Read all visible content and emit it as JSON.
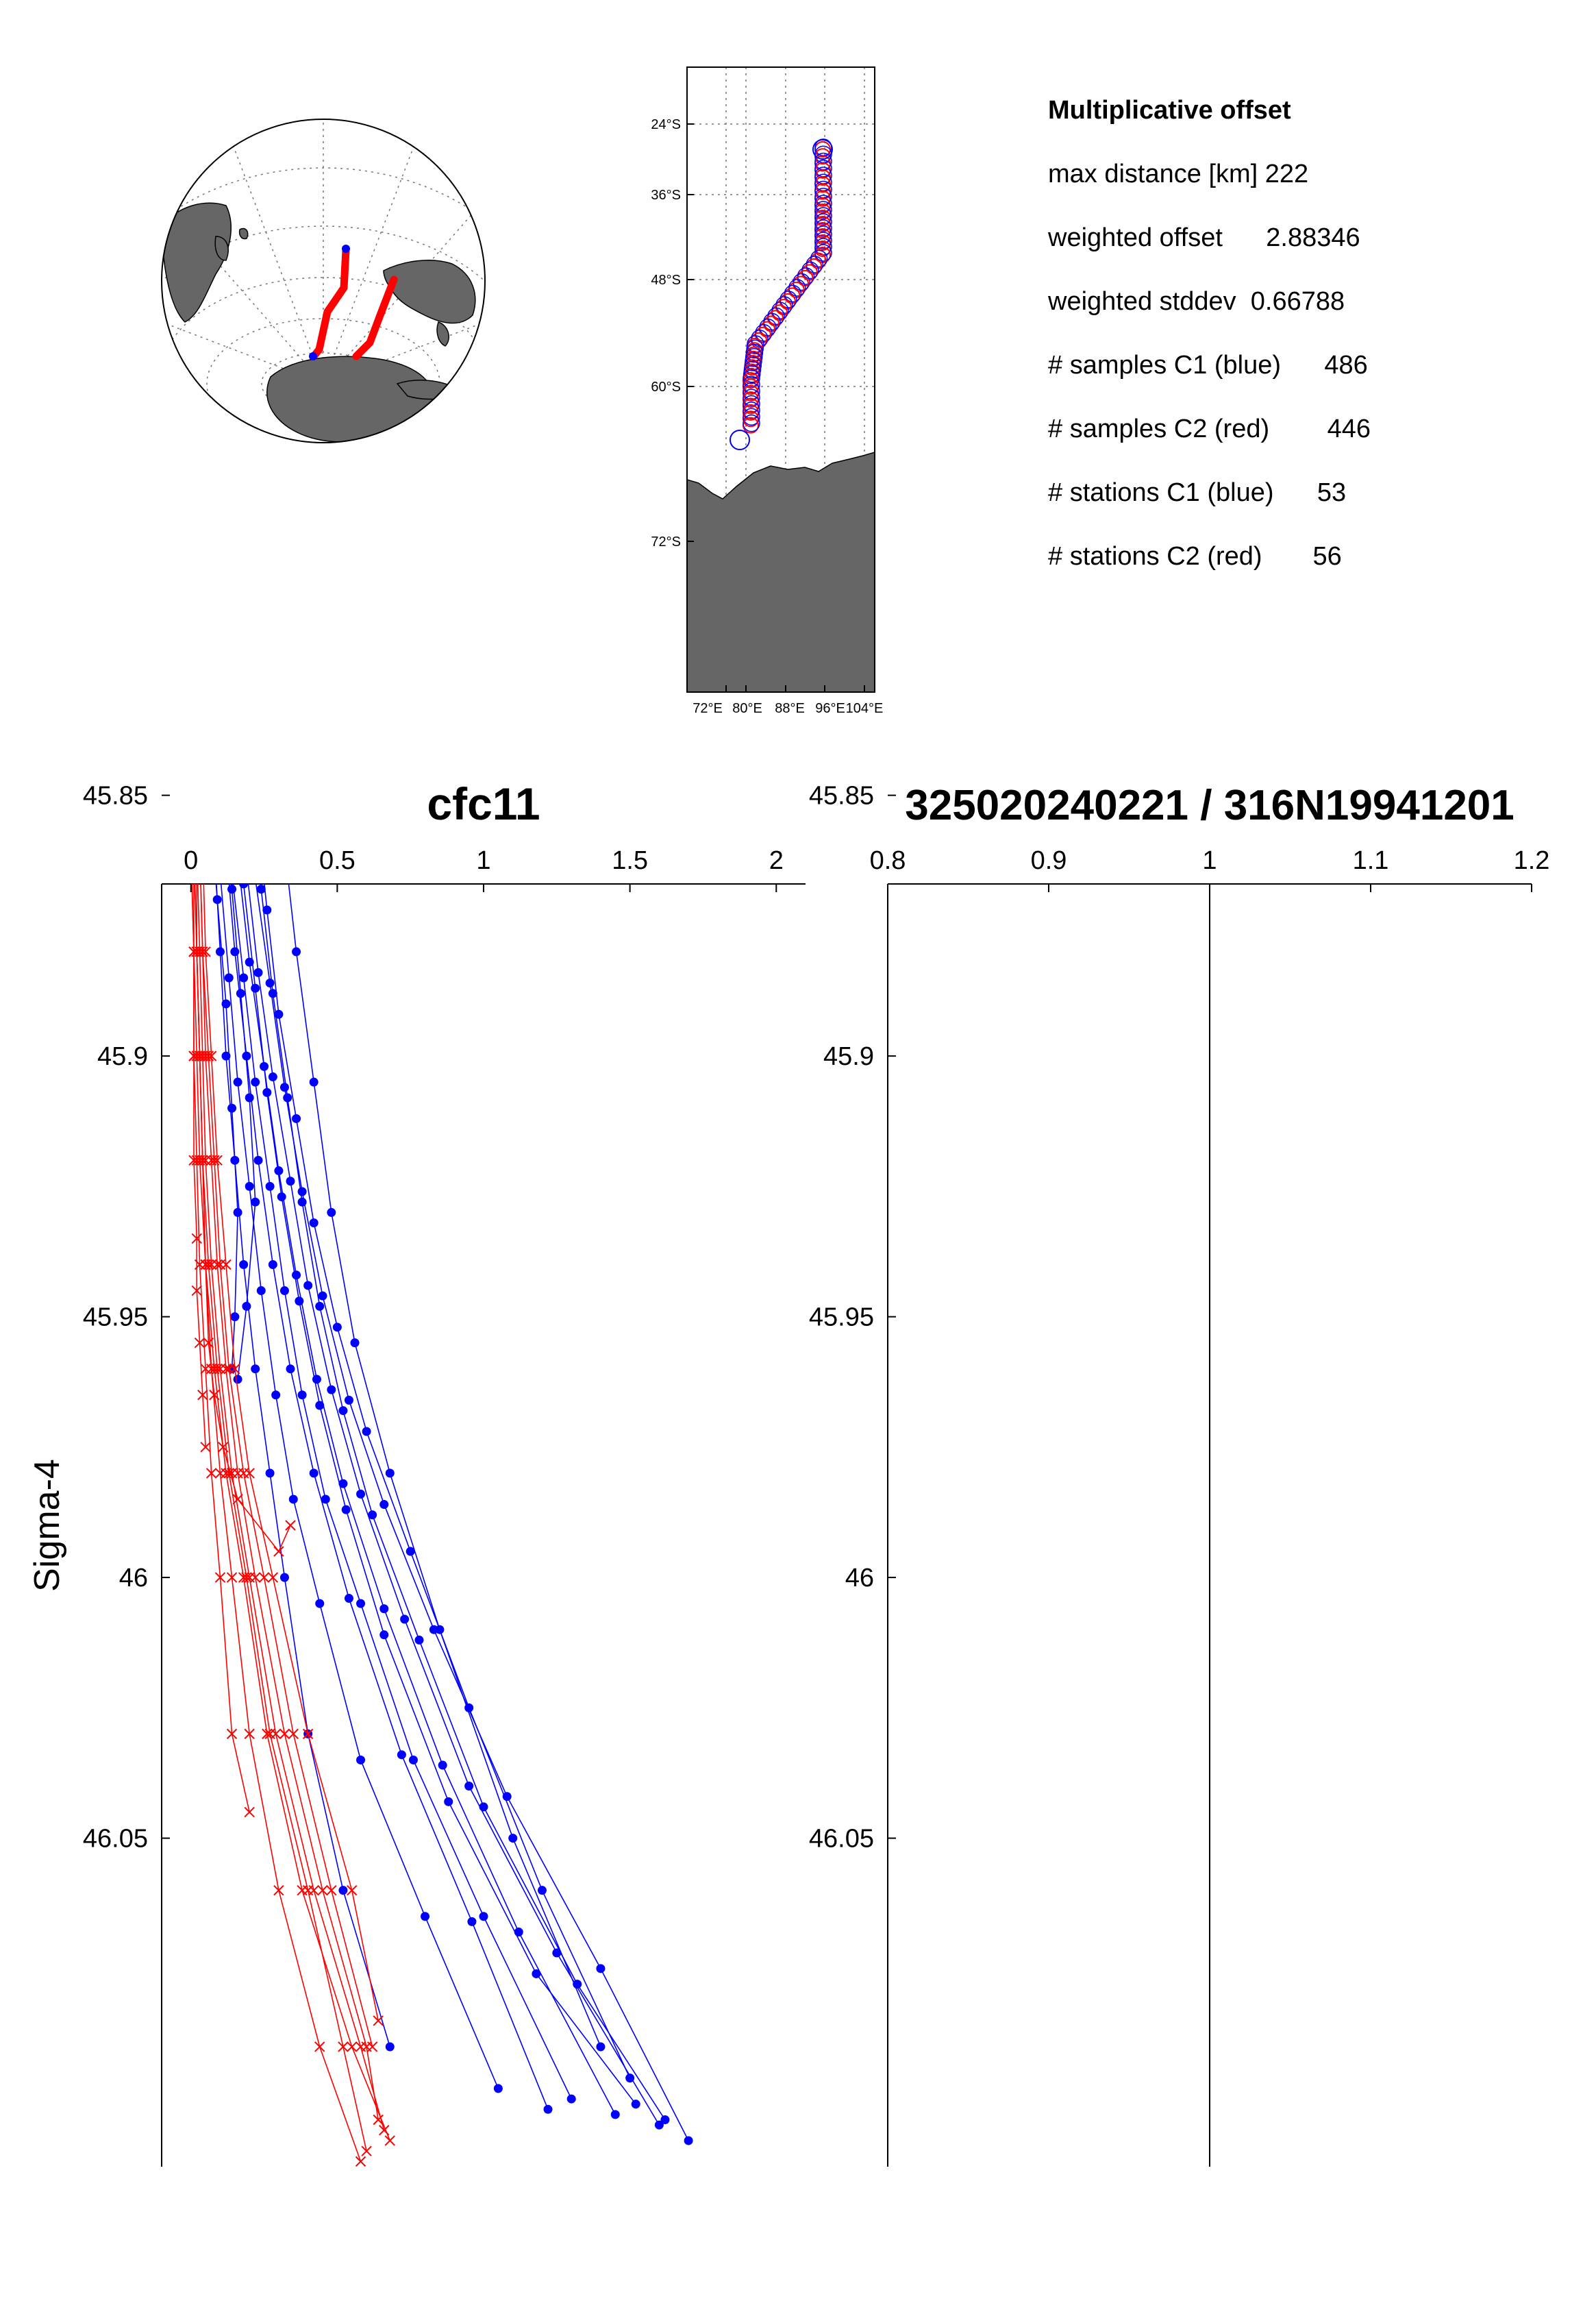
{
  "stats": {
    "heading": "Multiplicative offset",
    "lines": [
      {
        "label": "max distance [km]",
        "value": "222"
      },
      {
        "label": "weighted offset",
        "value": "2.88346"
      },
      {
        "label": "weighted stddev",
        "value": "0.66788"
      },
      {
        "label": "# samples C1 (blue)",
        "value": "486"
      },
      {
        "label": "# samples C2 (red)",
        "value": "446"
      },
      {
        "label": "# stations C1 (blue)",
        "value": "53"
      },
      {
        "label": "# stations C2 (red)",
        "value": "56"
      }
    ]
  },
  "map": {
    "lat_labels": [
      "24°S",
      "36°S",
      "48°S",
      "60°S",
      "72°S"
    ],
    "lon_labels": [
      "72°E",
      "80°E",
      "88°E",
      "96°E",
      "104°E"
    ],
    "colors": {
      "land": "#666666",
      "c1": "#0000ff",
      "c2": "#ff0000"
    }
  },
  "chart_data": [
    {
      "type": "line",
      "title": "cfc11",
      "xlabel": "",
      "ylabel": "Sigma-4",
      "xlim": [
        -0.1,
        2.1
      ],
      "ylim": [
        45.867,
        46.113
      ],
      "y_reversed": true,
      "x_axis_position": "top",
      "x_ticks": [
        "0",
        "0.5",
        "1",
        "1.5",
        "2"
      ],
      "y_ticks": [
        "45.85",
        "45.9",
        "45.95",
        "46",
        "46.05"
      ],
      "series": [
        {
          "color": "#0000ff",
          "marker": "dot",
          "profiles": [
            {
              "x": [
                0.04,
                0.08,
                0.1,
                0.12,
                0.15,
                0.18,
                0.22,
                0.27,
                0.32,
                0.4,
                0.52,
                0.68
              ],
              "y": [
                45.835,
                45.86,
                45.88,
                45.9,
                45.92,
                45.94,
                45.96,
                45.98,
                46.0,
                46.03,
                46.06,
                46.09
              ]
            },
            {
              "x": [
                0.06,
                0.1,
                0.13,
                0.16,
                0.2,
                0.24,
                0.29,
                0.35,
                0.44,
                0.58,
                0.8,
                1.05
              ],
              "y": [
                45.84,
                45.865,
                45.885,
                45.905,
                45.925,
                45.945,
                45.965,
                45.985,
                46.005,
                46.035,
                46.065,
                46.098
              ]
            },
            {
              "x": [
                0.1,
                0.14,
                0.18,
                0.22,
                0.27,
                0.32,
                0.38,
                0.46,
                0.58,
                0.76,
                1.0,
                1.3
              ],
              "y": [
                45.84,
                45.865,
                45.885,
                45.905,
                45.925,
                45.945,
                45.965,
                45.985,
                46.005,
                46.035,
                46.065,
                46.1
              ]
            },
            {
              "x": [
                0.12,
                0.16,
                0.2,
                0.25,
                0.3,
                0.36,
                0.43,
                0.52,
                0.66,
                0.86,
                1.12,
                1.45
              ],
              "y": [
                45.838,
                45.862,
                45.882,
                45.902,
                45.922,
                45.942,
                45.962,
                45.982,
                46.006,
                46.036,
                46.068,
                46.103
              ]
            },
            {
              "x": [
                0.15,
                0.19,
                0.23,
                0.28,
                0.34,
                0.4,
                0.48,
                0.58,
                0.73,
                0.95,
                1.25,
                1.6
              ],
              "y": [
                45.84,
                45.864,
                45.884,
                45.904,
                45.924,
                45.944,
                45.964,
                45.984,
                46.008,
                46.04,
                46.072,
                46.105
              ]
            },
            {
              "x": [
                0.18,
                0.22,
                0.27,
                0.32,
                0.38,
                0.45,
                0.54,
                0.66,
                0.83,
                1.08,
                1.4,
                1.7
              ],
              "y": [
                45.842,
                45.866,
                45.886,
                45.906,
                45.926,
                45.946,
                45.966,
                45.986,
                46.01,
                46.042,
                46.075,
                46.108
              ]
            },
            {
              "x": [
                0.08,
                0.12,
                0.15,
                0.19,
                0.23,
                0.28,
                0.34,
                0.42,
                0.54,
                0.72,
                0.96,
                1.22
              ],
              "y": [
                45.836,
                45.86,
                45.88,
                45.9,
                45.92,
                45.94,
                45.96,
                45.98,
                46.004,
                46.034,
                46.066,
                46.102
              ]
            },
            {
              "x": [
                0.2,
                0.24,
                0.28,
                0.33,
                0.38,
                0.44,
                0.52,
                0.62,
                0.78,
                1.0,
                1.32,
                1.62
              ],
              "y": [
                45.845,
                45.868,
                45.888,
                45.908,
                45.928,
                45.948,
                45.968,
                45.988,
                46.012,
                46.044,
                46.078,
                46.104
              ]
            },
            {
              "x": [
                0.14,
                0.18,
                0.22,
                0.26,
                0.31,
                0.37,
                0.44,
                0.53,
                0.66,
                0.88,
                1.18,
                1.52
              ],
              "y": [
                45.843,
                45.867,
                45.887,
                45.907,
                45.927,
                45.947,
                45.967,
                45.987,
                46.011,
                46.043,
                46.076,
                46.101
              ]
            },
            {
              "x": [
                0.05,
                0.09,
                0.12,
                0.14,
                0.16,
                0.15,
                0.14
              ],
              "y": [
                45.84,
                45.87,
                45.89,
                45.91,
                45.93,
                45.95,
                45.96
              ]
            },
            {
              "x": [
                0.1,
                0.14,
                0.17,
                0.2,
                0.22,
                0.19,
                0.16
              ],
              "y": [
                45.842,
                45.868,
                45.888,
                45.908,
                45.928,
                45.948,
                45.962
              ]
            },
            {
              "x": [
                0.22,
                0.26,
                0.3,
                0.36,
                0.42,
                0.5,
                0.6,
                0.75,
                0.95,
                1.2,
                1.5
              ],
              "y": [
                45.85,
                45.872,
                45.892,
                45.912,
                45.932,
                45.952,
                45.972,
                45.995,
                46.025,
                46.06,
                46.096
              ]
            },
            {
              "x": [
                0.28,
                0.32,
                0.36,
                0.42,
                0.48,
                0.56,
                0.68,
                0.85,
                1.1,
                1.4
              ],
              "y": [
                45.838,
                45.86,
                45.88,
                45.905,
                45.93,
                45.955,
                45.98,
                46.01,
                46.05,
                46.09
              ]
            }
          ]
        },
        {
          "color": "#ff0000",
          "marker": "cross",
          "profiles": [
            {
              "x": [
                0.0,
                0.01,
                0.01,
                0.02,
                0.03,
                0.05,
                0.08,
                0.12,
                0.18,
                0.26,
                0.38,
                0.55,
                0.68
              ],
              "y": [
                45.835,
                45.86,
                45.88,
                45.9,
                45.92,
                45.94,
                45.96,
                45.98,
                46.0,
                46.03,
                46.06,
                46.09,
                46.108
              ]
            },
            {
              "x": [
                0.01,
                0.02,
                0.03,
                0.04,
                0.05,
                0.07,
                0.1,
                0.14,
                0.2,
                0.29,
                0.42,
                0.58,
                0.66
              ],
              "y": [
                45.835,
                45.86,
                45.88,
                45.9,
                45.92,
                45.94,
                45.96,
                45.98,
                46.0,
                46.03,
                46.06,
                46.09,
                46.106
              ]
            },
            {
              "x": [
                0.02,
                0.03,
                0.04,
                0.05,
                0.07,
                0.09,
                0.12,
                0.16,
                0.22,
                0.32,
                0.45,
                0.6,
                0.64
              ],
              "y": [
                45.835,
                45.86,
                45.88,
                45.9,
                45.92,
                45.94,
                45.96,
                45.98,
                46.0,
                46.03,
                46.06,
                46.09,
                46.104
              ]
            },
            {
              "x": [
                0.0,
                0.01,
                0.02,
                0.03,
                0.04,
                0.06,
                0.09,
                0.13,
                0.19,
                0.27,
                0.4,
                0.52,
                0.6
              ],
              "y": [
                45.835,
                45.86,
                45.88,
                45.9,
                45.92,
                45.94,
                45.96,
                45.98,
                46.0,
                46.03,
                46.06,
                46.09,
                46.11
              ]
            },
            {
              "x": [
                0.01,
                0.02,
                0.02,
                0.03,
                0.04,
                0.05,
                0.07,
                0.1,
                0.14,
                0.2,
                0.3,
                0.44,
                0.58
              ],
              "y": [
                45.835,
                45.86,
                45.88,
                45.9,
                45.92,
                45.94,
                45.96,
                45.98,
                46.0,
                46.03,
                46.06,
                46.09,
                46.112
              ]
            },
            {
              "x": [
                0.02,
                0.03,
                0.04,
                0.06,
                0.08,
                0.1,
                0.13,
                0.18,
                0.25,
                0.35,
                0.48,
                0.62
              ],
              "y": [
                45.835,
                45.86,
                45.88,
                45.9,
                45.92,
                45.94,
                45.96,
                45.98,
                46.0,
                46.03,
                46.06,
                46.09
              ]
            },
            {
              "x": [
                0.0,
                0.0,
                0.01,
                0.01,
                0.02,
                0.03,
                0.05,
                0.07,
                0.1,
                0.14,
                0.2
              ],
              "y": [
                45.835,
                45.86,
                45.88,
                45.9,
                45.92,
                45.94,
                45.96,
                45.98,
                46.0,
                46.03,
                46.045
              ]
            },
            {
              "x": [
                0.01,
                0.01,
                0.02,
                0.03,
                0.04,
                0.05,
                0.06,
                0.08,
                0.11,
                0.16,
                0.3,
                0.34
              ],
              "y": [
                45.835,
                45.86,
                45.88,
                45.9,
                45.92,
                45.94,
                45.955,
                45.965,
                45.975,
                45.985,
                45.995,
                45.99
              ]
            },
            {
              "x": [
                0.0,
                0.0,
                0.01,
                0.01,
                0.01,
                0.02,
                0.02,
                0.03,
                0.04,
                0.05
              ],
              "y": [
                45.835,
                45.86,
                45.88,
                45.9,
                45.92,
                45.935,
                45.945,
                45.955,
                45.965,
                45.975
              ]
            },
            {
              "x": [
                0.03,
                0.04,
                0.05,
                0.07,
                0.09,
                0.12,
                0.15,
                0.2,
                0.28,
                0.4,
                0.55,
                0.64
              ],
              "y": [
                45.835,
                45.86,
                45.88,
                45.9,
                45.92,
                45.94,
                45.96,
                45.98,
                46.0,
                46.03,
                46.06,
                46.085
              ]
            }
          ]
        }
      ]
    },
    {
      "type": "line",
      "title": "325020240221 / 316N19941201",
      "xlabel": "",
      "ylabel": "",
      "xlim": [
        0.8,
        1.2
      ],
      "ylim": [
        45.867,
        46.113
      ],
      "y_reversed": true,
      "x_axis_position": "top",
      "x_ticks": [
        "0.8",
        "0.9",
        "1",
        "1.1",
        "1.2"
      ],
      "y_ticks": [
        "45.85",
        "45.9",
        "45.95",
        "46",
        "46.05"
      ],
      "reference_line_x": 1
    }
  ]
}
